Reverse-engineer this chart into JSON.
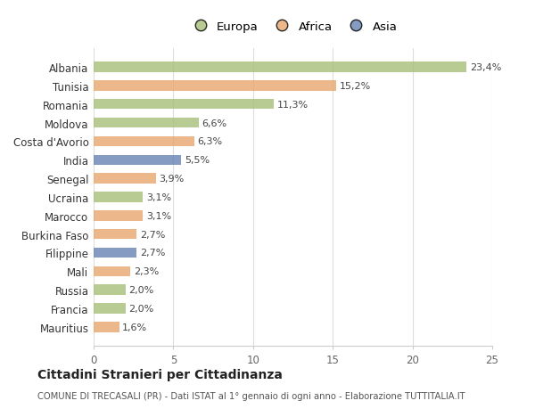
{
  "countries": [
    "Albania",
    "Tunisia",
    "Romania",
    "Moldova",
    "Costa d'Avorio",
    "India",
    "Senegal",
    "Ucraina",
    "Marocco",
    "Burkina Faso",
    "Filippine",
    "Mali",
    "Russia",
    "Francia",
    "Mauritius"
  ],
  "values": [
    23.4,
    15.2,
    11.3,
    6.6,
    6.3,
    5.5,
    3.9,
    3.1,
    3.1,
    2.7,
    2.7,
    2.3,
    2.0,
    2.0,
    1.6
  ],
  "labels": [
    "23,4%",
    "15,2%",
    "11,3%",
    "6,6%",
    "6,3%",
    "5,5%",
    "3,9%",
    "3,1%",
    "3,1%",
    "2,7%",
    "2,7%",
    "2,3%",
    "2,0%",
    "2,0%",
    "1,6%"
  ],
  "continents": [
    "Europa",
    "Africa",
    "Europa",
    "Europa",
    "Africa",
    "Asia",
    "Africa",
    "Europa",
    "Africa",
    "Africa",
    "Asia",
    "Africa",
    "Europa",
    "Europa",
    "Africa"
  ],
  "colors": {
    "Europa": "#a8c07a",
    "Africa": "#e8a870",
    "Asia": "#6b85b5"
  },
  "title": "Cittadini Stranieri per Cittadinanza",
  "subtitle": "COMUNE DI TRECASALI (PR) - Dati ISTAT al 1° gennaio di ogni anno - Elaborazione TUTTITALIA.IT",
  "xlim": [
    0,
    25
  ],
  "xticks": [
    0,
    5,
    10,
    15,
    20,
    25
  ],
  "background_color": "#ffffff",
  "bar_alpha": 0.82
}
